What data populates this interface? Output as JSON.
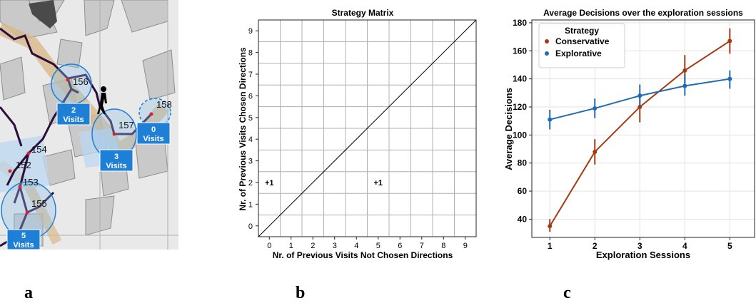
{
  "panel_letters": {
    "a": "a",
    "b": "b",
    "c": "c"
  },
  "map_panel": {
    "node_labels": [
      "156",
      "157",
      "158",
      "154",
      "152",
      "153",
      "155"
    ],
    "visit_badges": [
      {
        "count": "2",
        "label": "Visits"
      },
      {
        "count": "0",
        "label": "Visits"
      },
      {
        "count": "3",
        "label": "Visits"
      },
      {
        "count": "5",
        "label": "Visits"
      }
    ],
    "colors": {
      "path": "#2a0f3d",
      "badge": "#1e7fd6",
      "circle": "#1e7fd6",
      "node": "#e0202a"
    }
  },
  "chart_data": [
    {
      "type": "line",
      "title": "Strategy Matrix",
      "xlabel": "Nr. of Previous Visits Not Chosen Directions",
      "ylabel": "Nr. of Previous Visits Chosen Directions",
      "x_ticks": [
        "0",
        "1",
        "2",
        "3",
        "4",
        "5",
        "6",
        "7",
        "8",
        "9"
      ],
      "y_ticks": [
        "0",
        "1",
        "2",
        "3",
        "4",
        "5",
        "6",
        "7",
        "8",
        "9"
      ],
      "xlim": [
        -0.5,
        9.5
      ],
      "ylim": [
        -0.5,
        9.5
      ],
      "grid": true,
      "diagonal": {
        "x": [
          -0.5,
          9.5
        ],
        "y": [
          -0.5,
          9.5
        ]
      },
      "annotations": [
        {
          "text": "+1",
          "x": 0,
          "y": 2
        },
        {
          "text": "+1",
          "x": 5,
          "y": 2
        }
      ]
    },
    {
      "type": "line",
      "title": "Average Decisions over the exploration sessions",
      "xlabel": "Exploration Sessions",
      "ylabel": "Average Decisions",
      "x": [
        1,
        2,
        3,
        4,
        5
      ],
      "xlim": [
        0.6,
        5.55
      ],
      "ylim": [
        27,
        182
      ],
      "x_ticks": [
        "1",
        "2",
        "3",
        "4",
        "5"
      ],
      "y_ticks": [
        "40",
        "60",
        "80",
        "100",
        "120",
        "140",
        "160",
        "180"
      ],
      "grid": true,
      "legend": {
        "title": "Strategy",
        "placement": "top-left"
      },
      "series": [
        {
          "name": "Conservative",
          "color": "#a33a12",
          "values": [
            35,
            88,
            120,
            146,
            167
          ],
          "err_low": [
            31,
            79,
            109,
            137,
            158
          ],
          "err_high": [
            40,
            97,
            130,
            157,
            176
          ]
        },
        {
          "name": "Explorative",
          "color": "#1f6bb5",
          "values": [
            111,
            119,
            128,
            135,
            140
          ],
          "err_low": [
            104,
            112,
            121,
            128,
            133
          ],
          "err_high": [
            118,
            126,
            136,
            143,
            146
          ]
        }
      ]
    }
  ]
}
